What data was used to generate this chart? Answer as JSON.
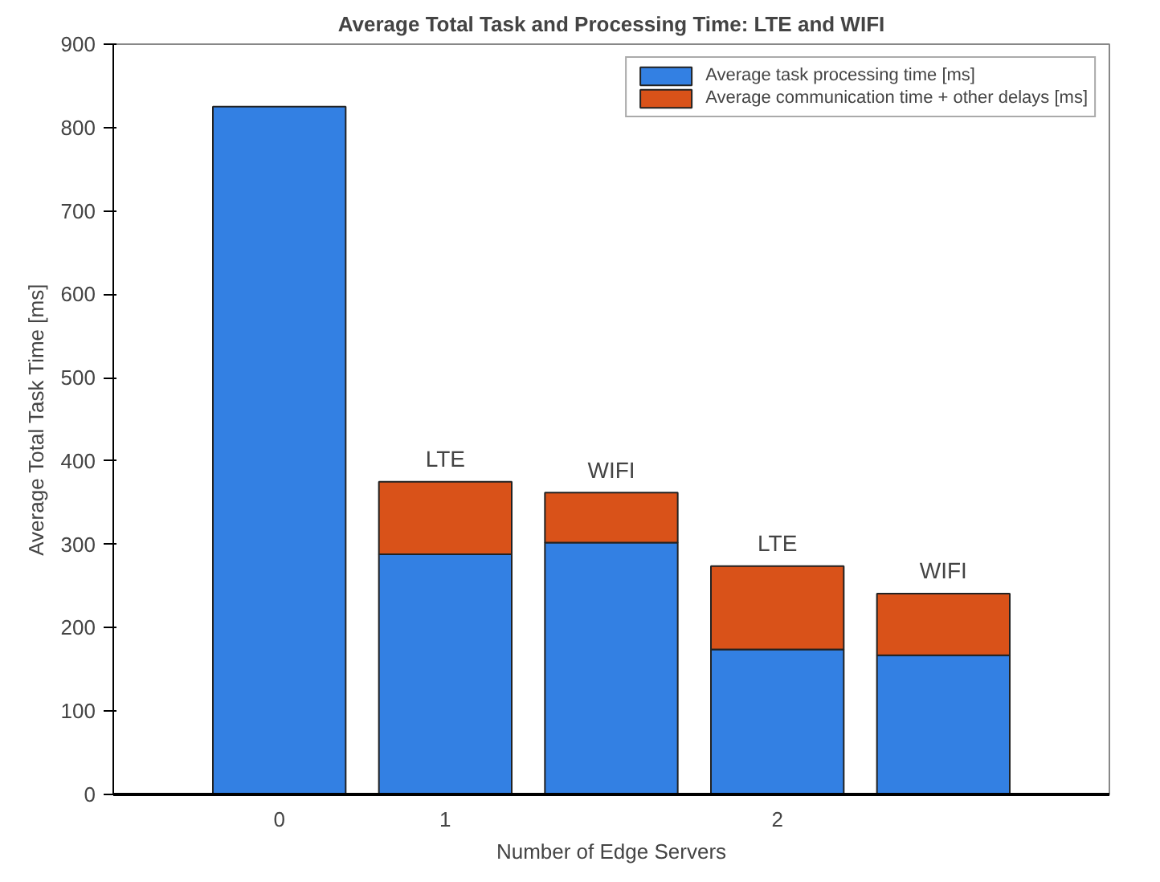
{
  "chart_data": {
    "type": "bar",
    "stacked": true,
    "title": "Average Total Task and Processing Time: LTE and WIFI",
    "xlabel": "Number of Edge Servers",
    "ylabel": "Average Total Task Time [ms]",
    "categories": [
      "0",
      "1",
      null,
      "2",
      null
    ],
    "series": [
      {
        "name": "Average task processing time [ms]",
        "color": "#3380e3",
        "values": [
          825,
          288,
          302,
          174,
          167
        ]
      },
      {
        "name": "Average communication time + other delays [ms]",
        "color": "#d95219",
        "values": [
          0,
          87,
          60,
          100,
          74
        ]
      }
    ],
    "ylim": [
      0,
      900
    ],
    "yticks": [
      0,
      100,
      200,
      300,
      400,
      500,
      600,
      700,
      800,
      900
    ],
    "annotations": [
      "LTE",
      "WIFI",
      "LTE",
      "WIFI"
    ],
    "grid": false,
    "legend": "top right"
  }
}
